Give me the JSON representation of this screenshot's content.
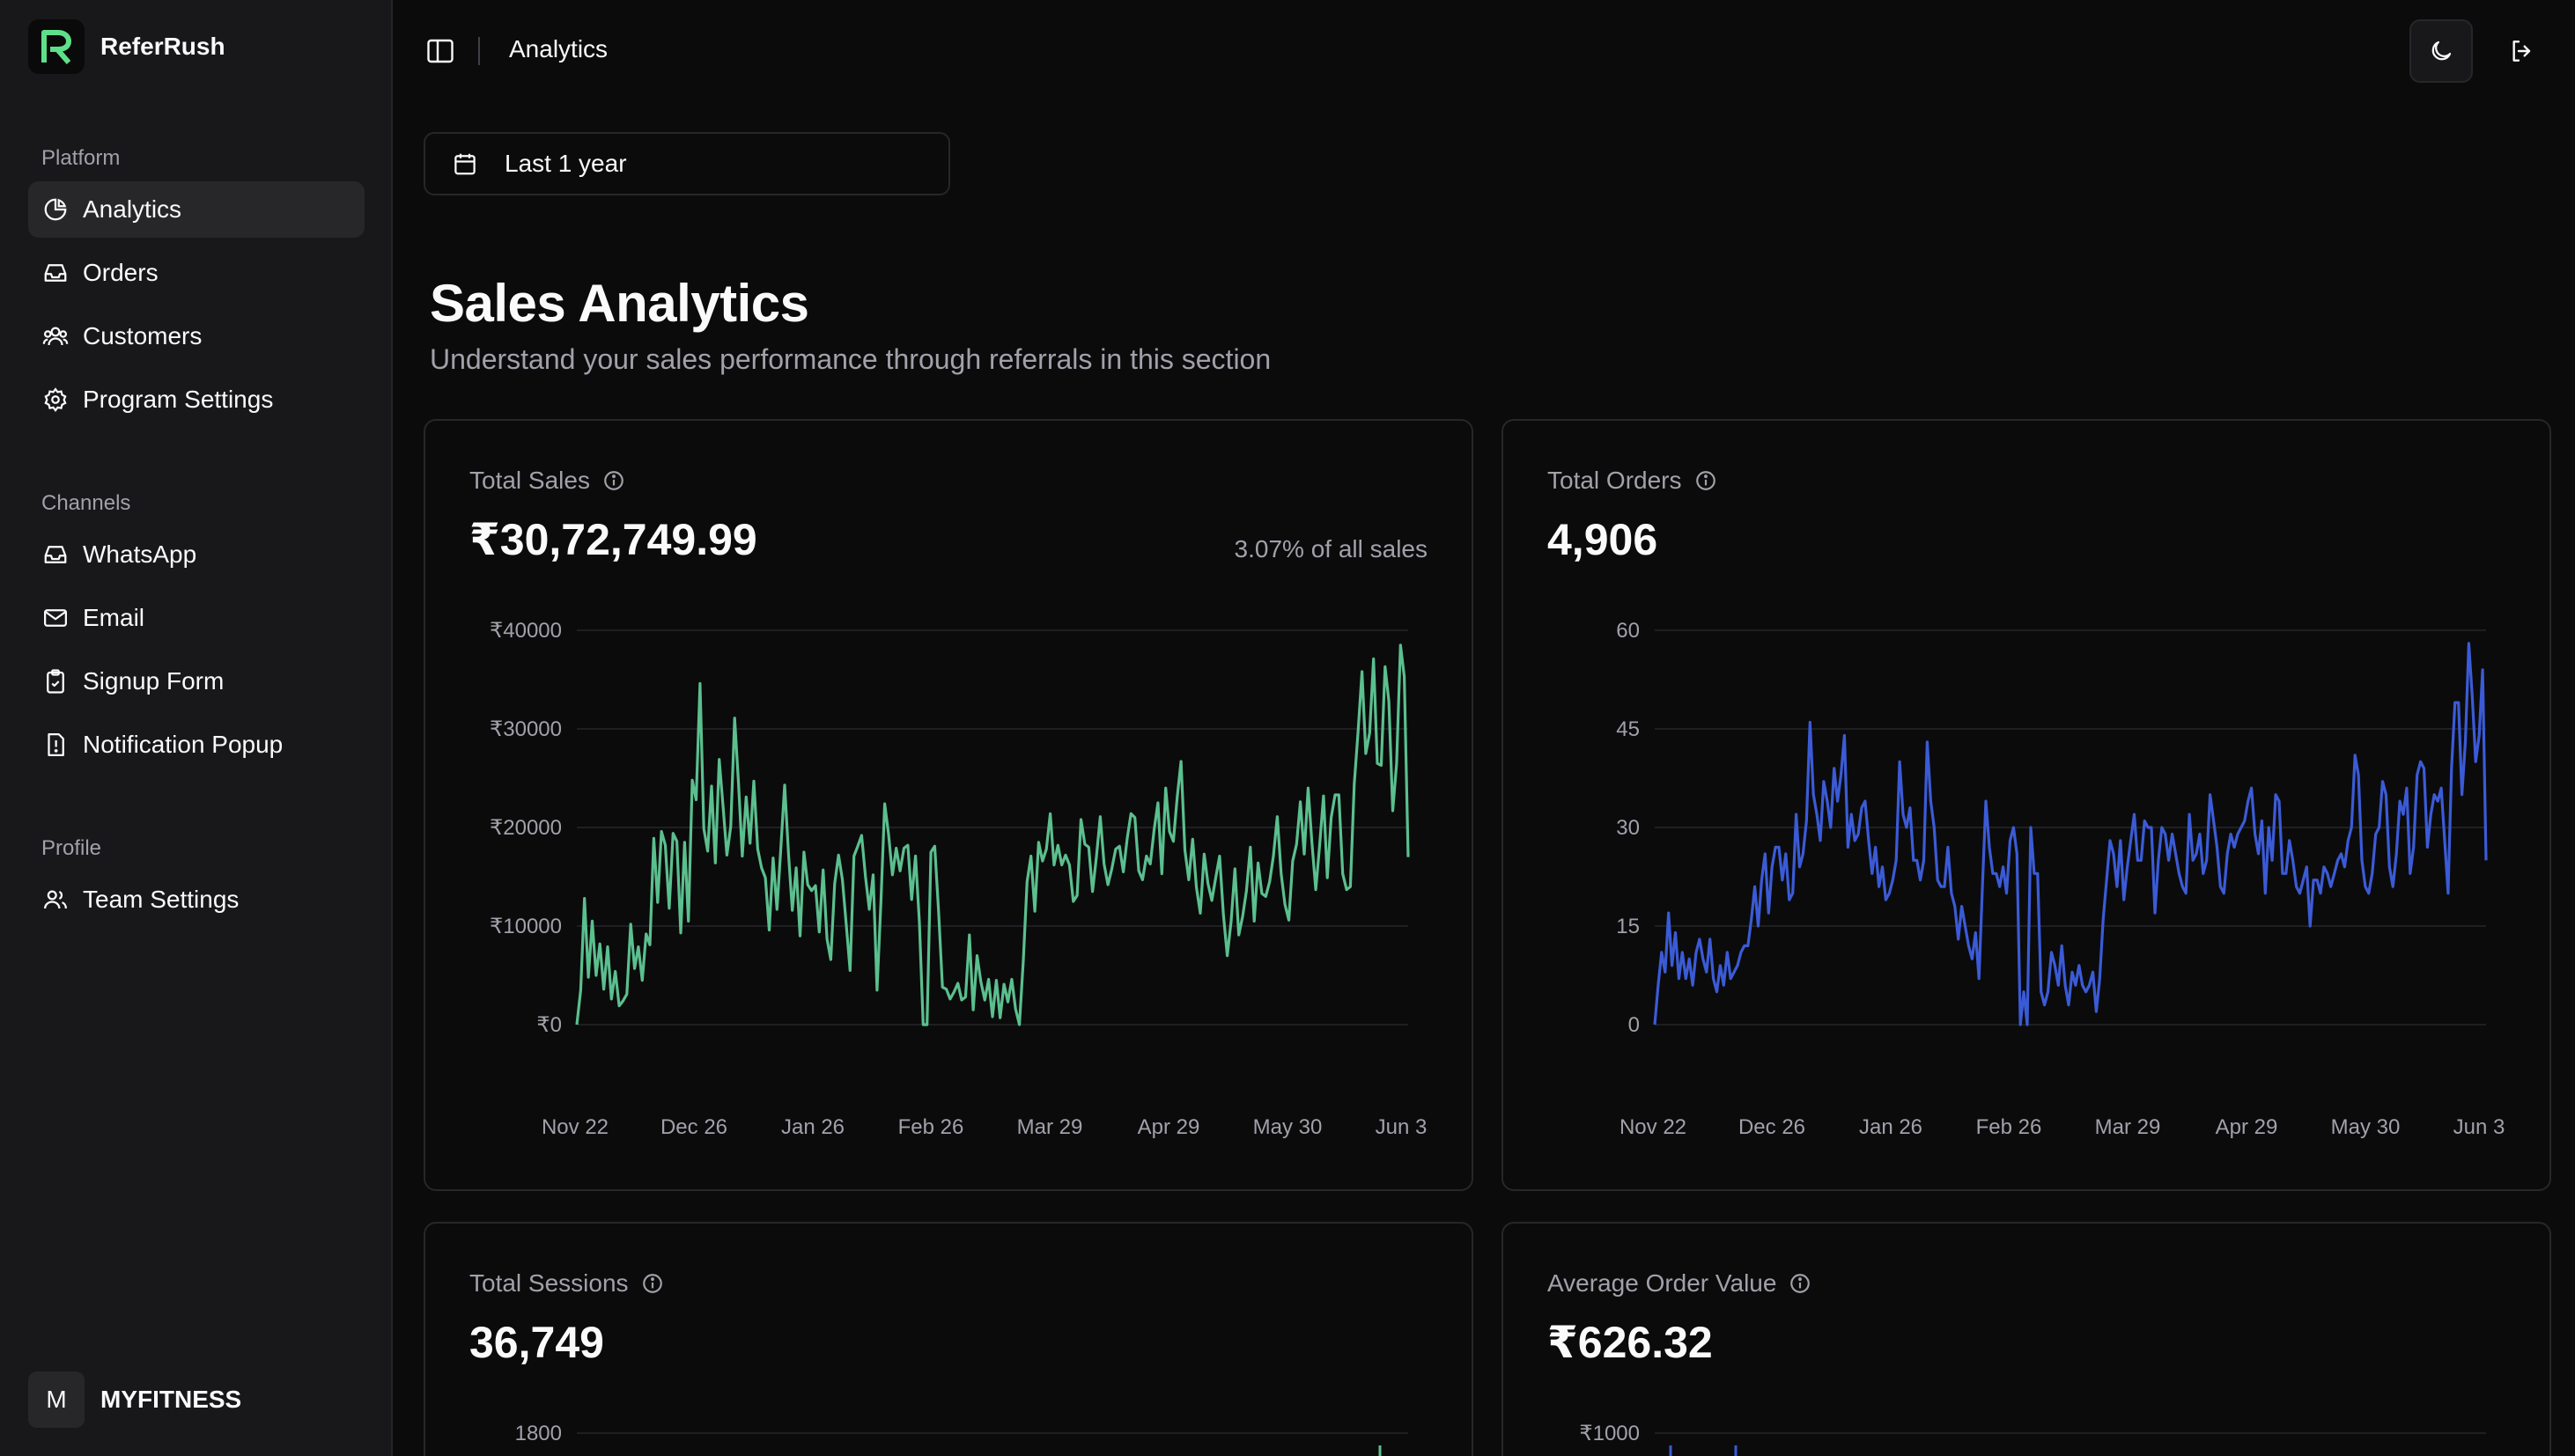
{
  "app": {
    "name": "ReferRush"
  },
  "sidebar": {
    "sections": [
      {
        "heading": "Platform",
        "items": [
          {
            "label": "Analytics",
            "icon": "pie-chart-icon",
            "active": true
          },
          {
            "label": "Orders",
            "icon": "inbox-icon"
          },
          {
            "label": "Customers",
            "icon": "users-icon"
          },
          {
            "label": "Program Settings",
            "icon": "settings-icon"
          }
        ]
      },
      {
        "heading": "Channels",
        "items": [
          {
            "label": "WhatsApp",
            "icon": "inbox-icon"
          },
          {
            "label": "Email",
            "icon": "mail-icon"
          },
          {
            "label": "Signup Form",
            "icon": "clipboard-check-icon"
          },
          {
            "label": "Notification Popup",
            "icon": "alert-file-icon"
          }
        ]
      },
      {
        "heading": "Profile",
        "items": [
          {
            "label": "Team Settings",
            "icon": "users-icon"
          }
        ]
      }
    ],
    "account": {
      "initial": "M",
      "name": "MYFITNESS"
    }
  },
  "header": {
    "title": "Analytics"
  },
  "date_range": {
    "label": "Last 1 year"
  },
  "section": {
    "title": "Sales Analytics",
    "subtitle": "Understand your sales performance through referrals in this section"
  },
  "cards": {
    "total_sales": {
      "label": "Total Sales",
      "value": "₹30,72,749.99",
      "note": "3.07% of all sales"
    },
    "total_orders": {
      "label": "Total Orders",
      "value": "4,906"
    },
    "total_sessions": {
      "label": "Total Sessions",
      "value": "36,749"
    },
    "avg_order_value": {
      "label": "Average Order Value",
      "value": "₹626.32"
    }
  },
  "chart_data": [
    {
      "type": "line",
      "title": "Total Sales",
      "color": "#5bbf8e",
      "x_ticks": [
        "Nov 22",
        "Dec 26",
        "Jan 26",
        "Feb 26",
        "Mar 29",
        "Apr 29",
        "May 30",
        "Jun 3"
      ],
      "y_ticks": [
        "₹40000",
        "₹30000",
        "₹20000",
        "₹10000",
        "₹0"
      ],
      "ylim": [
        0,
        40000
      ],
      "grid": true,
      "series": [
        {
          "values": [
            0,
            3500,
            12800,
            4800,
            10500,
            5000,
            8200,
            3600,
            7900,
            2600,
            5400,
            1900,
            2400,
            3100,
            10200,
            5700,
            7900,
            4500,
            9200,
            8100,
            18900,
            12400,
            19600,
            18200,
            11800,
            19400,
            18600,
            9300,
            18500,
            10500,
            24800,
            22800,
            34600,
            19900,
            17600,
            24200,
            16400,
            26900,
            22100,
            17200,
            20100,
            31100,
            24500,
            17100,
            23100,
            18400,
            24700,
            17800,
            15900,
            14900,
            9600,
            16900,
            11700,
            17800,
            24300,
            17300,
            11600,
            15900,
            9000,
            17500,
            14200,
            13600,
            14100,
            9400,
            15700,
            8700,
            6600,
            14300,
            17200,
            14700,
            10200,
            5500,
            17100,
            18100,
            19200,
            15000,
            11700,
            15200,
            3500,
            12400,
            22400,
            19300,
            15200,
            17900,
            15600,
            17900,
            18200,
            12700,
            17100,
            10400,
            0,
            0,
            17500,
            18100,
            11500,
            3800,
            3600,
            2600,
            3300,
            4200,
            2500,
            2800,
            9100,
            1500,
            7000,
            4300,
            2500,
            4600,
            800,
            4500,
            700,
            4100,
            2300,
            4600,
            1600,
            0,
            6500,
            14500,
            17100,
            11500,
            18500,
            16600,
            17800,
            21400,
            16200,
            18200,
            16200,
            17200,
            16200,
            12500,
            13100,
            20800,
            18300,
            18000,
            13500,
            17000,
            21100,
            16300,
            14200,
            15800,
            17800,
            18100,
            15500,
            18900,
            21400,
            21000,
            15600,
            14700,
            17100,
            16300,
            19800,
            22500,
            15300,
            24000,
            19600,
            18600,
            23100,
            26700,
            17700,
            14700,
            18800,
            13900,
            11300,
            17300,
            14300,
            12600,
            14900,
            17100,
            11200,
            7000,
            10500,
            15800,
            9100,
            11000,
            13600,
            18000,
            10500,
            16400,
            13300,
            13000,
            14500,
            17100,
            21100,
            15300,
            12200,
            10600,
            16600,
            18300,
            22600,
            17300,
            24000,
            18500,
            13700,
            18200,
            23200,
            14900,
            21000,
            23300,
            23300,
            15300,
            13700,
            14000,
            24400,
            29800,
            35800,
            27500,
            29600,
            37100,
            26500,
            26300,
            36300,
            32800,
            21700,
            26500,
            38500,
            35300,
            17000
          ]
        }
      ]
    },
    {
      "type": "line",
      "title": "Total Orders",
      "color": "#3b5bd6",
      "x_ticks": [
        "Nov 22",
        "Dec 26",
        "Jan 26",
        "Feb 26",
        "Mar 29",
        "Apr 29",
        "May 30",
        "Jun 3"
      ],
      "y_ticks": [
        "60",
        "45",
        "30",
        "15",
        "0"
      ],
      "ylim": [
        0,
        60
      ],
      "grid": true,
      "series": [
        {
          "values": [
            0,
            6,
            11,
            8,
            17,
            9,
            14,
            7,
            11,
            7,
            10,
            6,
            11,
            13,
            10,
            8,
            13,
            7,
            5,
            9,
            6,
            11,
            7,
            8,
            9,
            11,
            12,
            12,
            16,
            21,
            15,
            22,
            26,
            17,
            24,
            27,
            27,
            22,
            26,
            19,
            20,
            32,
            24,
            26,
            31,
            46,
            35,
            32,
            28,
            37,
            34,
            30,
            39,
            34,
            38,
            44,
            27,
            32,
            28,
            29,
            33,
            34,
            28,
            23,
            27,
            21,
            24,
            19,
            20,
            22,
            25,
            40,
            32,
            30,
            33,
            25,
            25,
            22,
            25,
            43,
            34,
            30,
            22,
            21,
            21,
            27,
            20,
            18,
            13,
            18,
            15,
            12,
            10,
            14,
            7,
            21,
            34,
            27,
            23,
            23,
            21,
            24,
            20,
            28,
            30,
            26,
            0,
            5,
            0,
            30,
            23,
            23,
            5,
            3,
            5,
            11,
            9,
            6,
            12,
            6,
            3,
            8,
            6,
            9,
            6,
            5,
            6,
            8,
            2,
            7,
            16,
            22,
            28,
            26,
            21,
            28,
            19,
            24,
            28,
            32,
            25,
            25,
            31,
            30,
            30,
            17,
            25,
            30,
            29,
            25,
            29,
            26,
            23,
            21,
            20,
            32,
            25,
            26,
            29,
            23,
            25,
            35,
            31,
            27,
            21,
            20,
            26,
            29,
            27,
            29,
            30,
            31,
            34,
            36,
            29,
            26,
            31,
            20,
            30,
            25,
            35,
            34,
            23,
            23,
            28,
            25,
            21,
            20,
            22,
            24,
            15,
            22,
            22,
            20,
            24,
            23,
            21,
            23,
            25,
            26,
            24,
            28,
            30,
            41,
            38,
            25,
            21,
            20,
            23,
            29,
            30,
            37,
            35,
            24,
            21,
            26,
            34,
            32,
            36,
            23,
            27,
            38,
            40,
            39,
            27,
            32,
            35,
            34,
            36,
            28,
            20,
            39,
            49,
            49,
            35,
            43,
            58,
            50,
            40,
            44,
            54,
            25
          ]
        }
      ]
    },
    {
      "type": "line",
      "title": "Total Sessions",
      "color": "#5bbf8e",
      "y_ticks": [
        "1800"
      ],
      "series": [
        {
          "values": []
        }
      ]
    },
    {
      "type": "line",
      "title": "Average Order Value",
      "color": "#3b5bd6",
      "y_ticks": [
        "₹1000"
      ],
      "series": [
        {
          "values": []
        }
      ]
    }
  ]
}
